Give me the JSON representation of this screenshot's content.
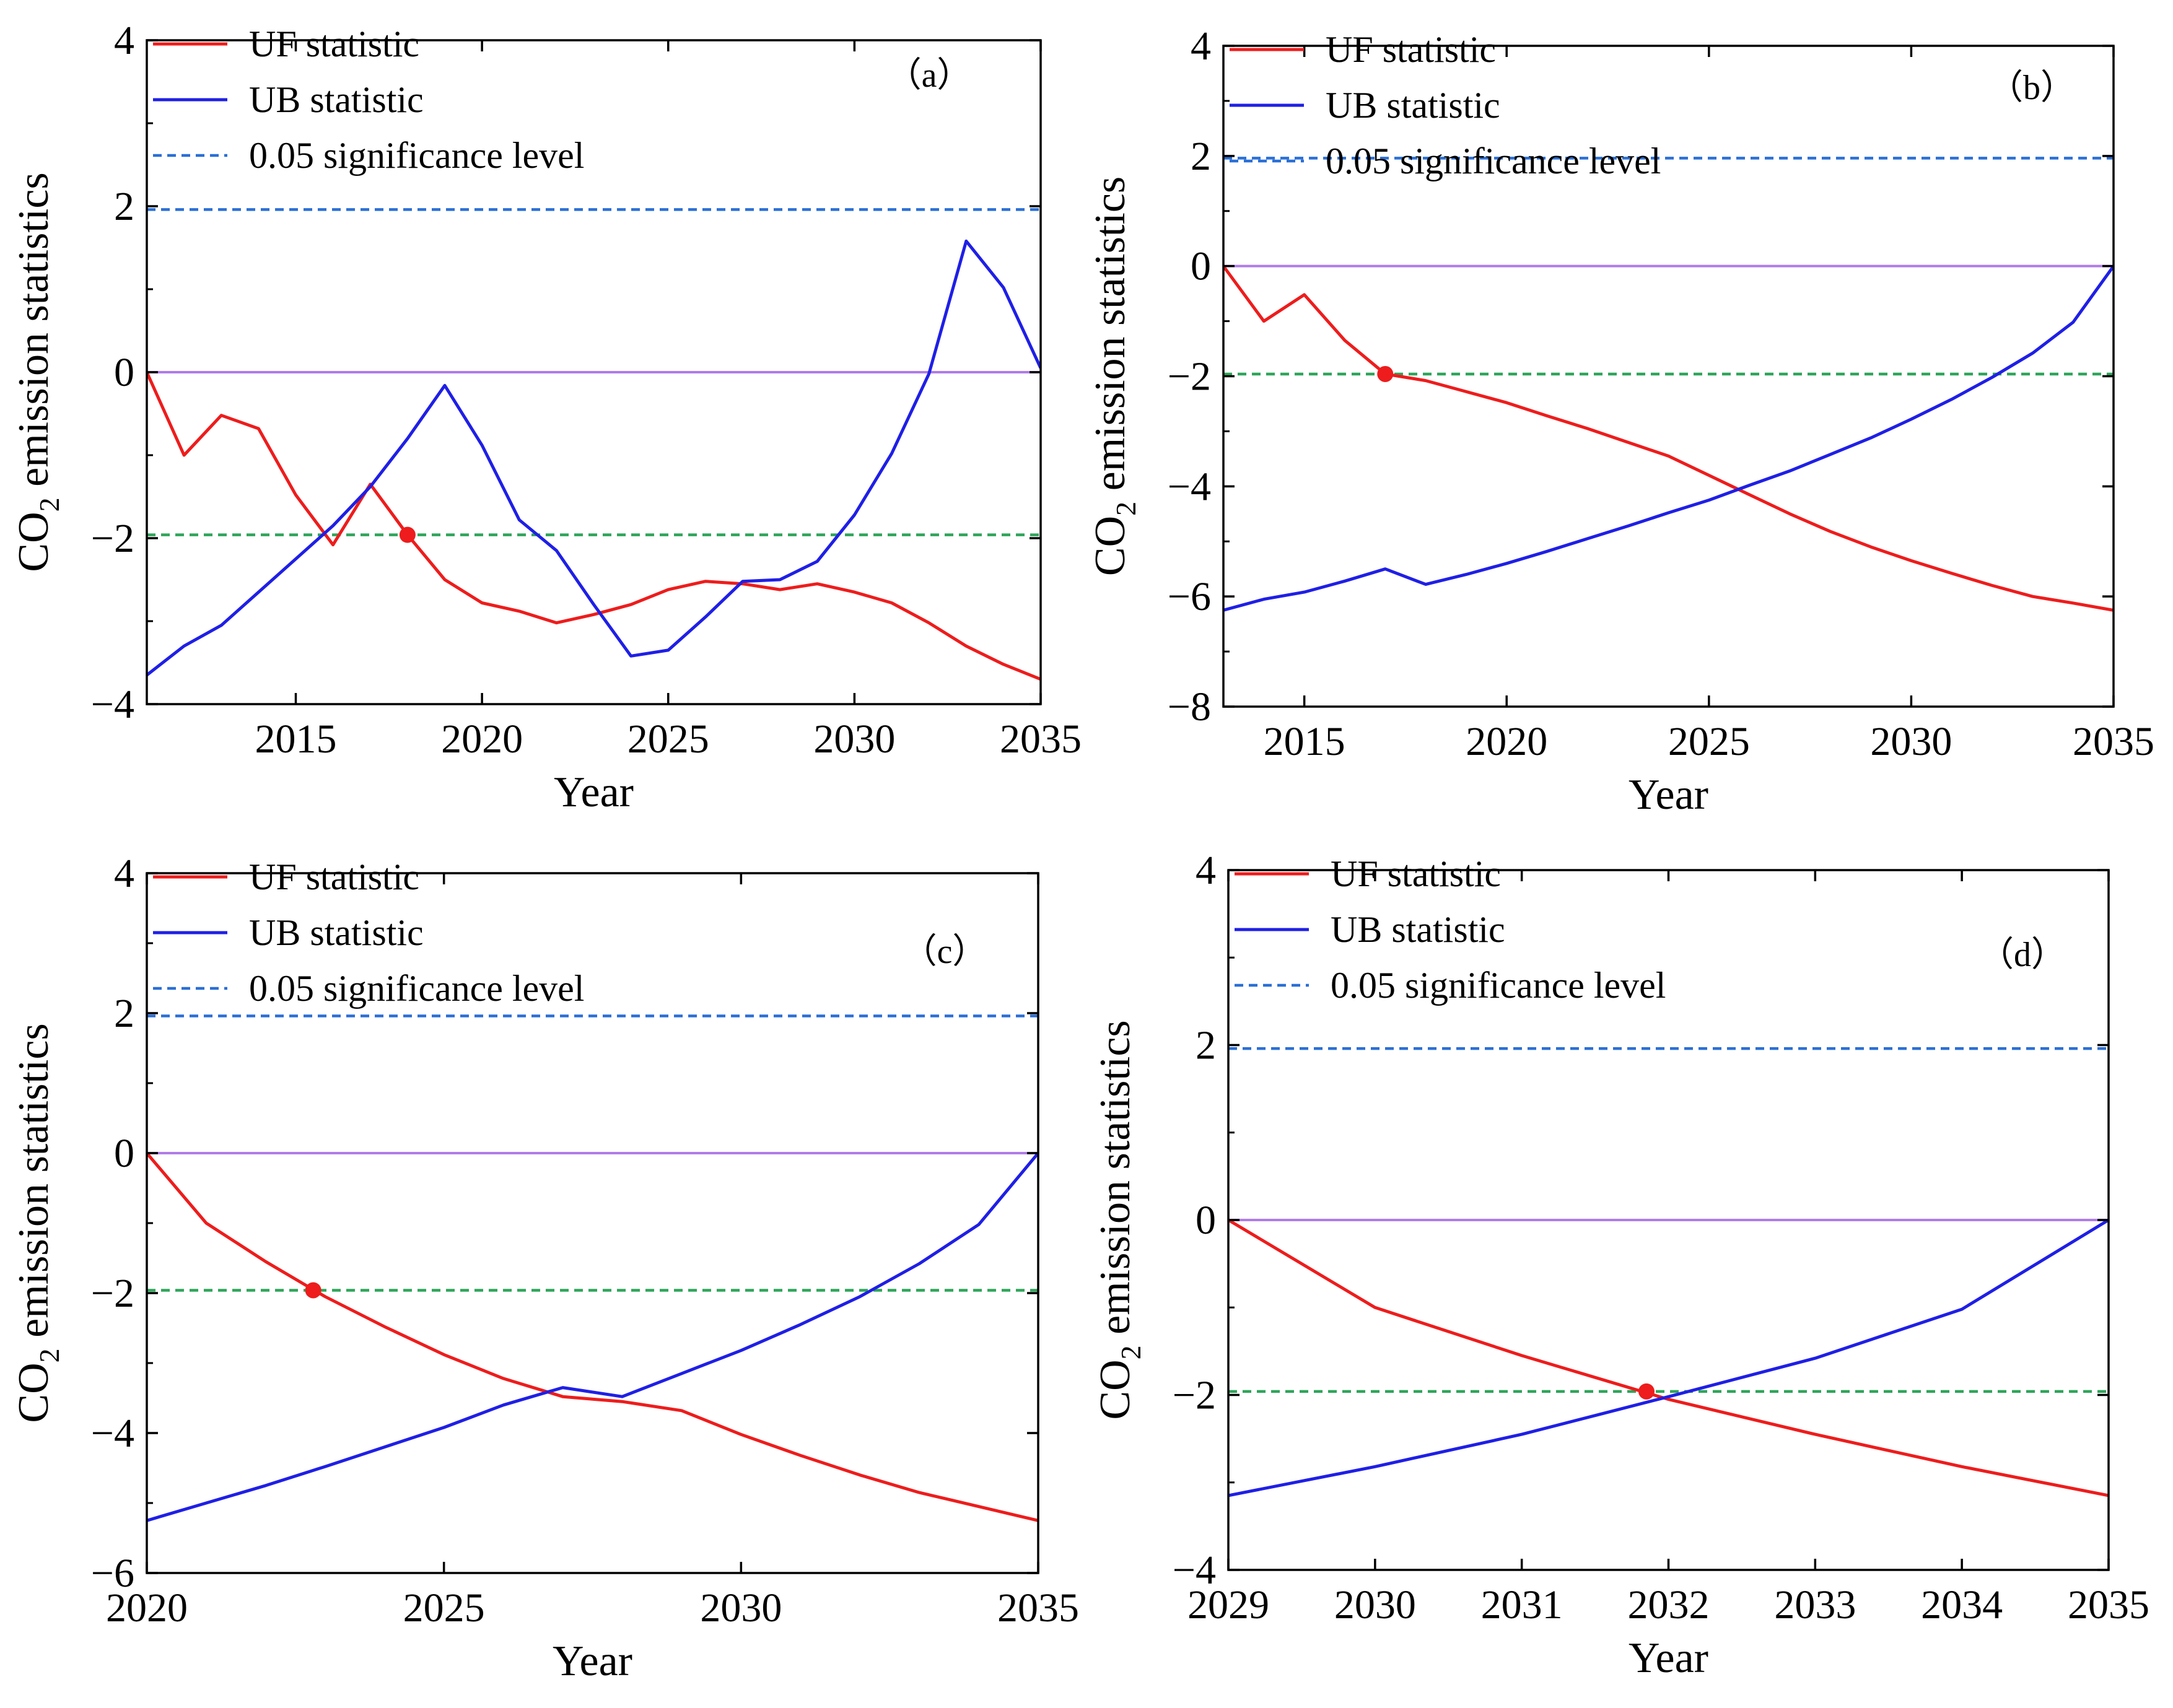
{
  "colors": {
    "uf": "#ee1c1c",
    "ub": "#1f1fe6",
    "sig_upper": "#2a6fd6",
    "sig_lower": "#2ea55a",
    "zero": "#b07ce8",
    "axis": "#000000"
  },
  "legend": {
    "uf": "UF statistic",
    "ub": "UB statistic",
    "sig": "0.05 significance level"
  },
  "chart_data": [
    {
      "id": "a",
      "type": "line",
      "label": "（a）",
      "xlabel": "Year",
      "ylabel_main": "CO",
      "ylabel_sub": "2",
      "ylabel_rest": " emission statistics",
      "xlim": [
        2011,
        2035
      ],
      "ylim": [
        -4,
        4
      ],
      "xticks": [
        2015,
        2020,
        2025,
        2030,
        2035
      ],
      "yticks": [
        4,
        2,
        0,
        -2,
        -4
      ],
      "significance": [
        1.96,
        -1.96
      ],
      "series": [
        {
          "name": "UF statistic",
          "x": [
            2011,
            2012,
            2013,
            2014,
            2015,
            2016,
            2017,
            2018,
            2019,
            2020,
            2021,
            2022,
            2023,
            2024,
            2025,
            2026,
            2027,
            2028,
            2029,
            2030,
            2031,
            2032,
            2033,
            2034,
            2035
          ],
          "values": [
            0,
            -1.0,
            -0.52,
            -0.68,
            -1.48,
            -2.08,
            -1.35,
            -1.96,
            -2.5,
            -2.78,
            -2.88,
            -3.02,
            -2.92,
            -2.8,
            -2.62,
            -2.52,
            -2.55,
            -2.62,
            -2.55,
            -2.65,
            -2.78,
            -3.02,
            -3.3,
            -3.52,
            -3.7
          ]
        },
        {
          "name": "UB statistic",
          "x": [
            2011,
            2012,
            2013,
            2014,
            2015,
            2016,
            2017,
            2018,
            2019,
            2020,
            2021,
            2022,
            2023,
            2024,
            2025,
            2026,
            2027,
            2028,
            2029,
            2030,
            2031,
            2032,
            2033,
            2034,
            2035
          ],
          "values": [
            -3.65,
            -3.3,
            -3.05,
            -2.65,
            -2.25,
            -1.85,
            -1.38,
            -0.8,
            -0.16,
            -0.88,
            -1.78,
            -2.15,
            -2.8,
            -3.42,
            -3.35,
            -2.95,
            -2.52,
            -2.5,
            -2.28,
            -1.72,
            -0.98,
            -0.02,
            1.58,
            1.02,
            0.05
          ]
        }
      ],
      "marker": {
        "x": 2018,
        "y": -1.96
      }
    },
    {
      "id": "b",
      "type": "line",
      "label": "（b）",
      "xlabel": "Year",
      "ylabel_main": "CO",
      "ylabel_sub": "2",
      "ylabel_rest": " emission statistics",
      "xlim": [
        2013,
        2035
      ],
      "ylim": [
        -8,
        4
      ],
      "xticks": [
        2015,
        2020,
        2025,
        2030,
        2035
      ],
      "yticks": [
        4,
        2,
        0,
        -2,
        -4,
        -6,
        -8
      ],
      "significance": [
        1.96,
        -1.96
      ],
      "series": [
        {
          "name": "UF statistic",
          "x": [
            2013,
            2014,
            2015,
            2016,
            2017,
            2018,
            2019,
            2020,
            2021,
            2022,
            2023,
            2024,
            2025,
            2026,
            2027,
            2028,
            2029,
            2030,
            2031,
            2032,
            2033,
            2034,
            2035
          ],
          "values": [
            0,
            -1.0,
            -0.52,
            -1.35,
            -1.96,
            -2.08,
            -2.28,
            -2.48,
            -2.72,
            -2.95,
            -3.2,
            -3.45,
            -3.8,
            -4.15,
            -4.5,
            -4.82,
            -5.1,
            -5.35,
            -5.58,
            -5.8,
            -6.0,
            -6.12,
            -6.25
          ]
        },
        {
          "name": "UB statistic",
          "x": [
            2013,
            2014,
            2015,
            2016,
            2017,
            2018,
            2019,
            2020,
            2021,
            2022,
            2023,
            2024,
            2025,
            2026,
            2027,
            2028,
            2029,
            2030,
            2031,
            2032,
            2033,
            2034,
            2035
          ],
          "values": [
            -6.25,
            -6.05,
            -5.92,
            -5.72,
            -5.5,
            -5.78,
            -5.6,
            -5.4,
            -5.18,
            -4.95,
            -4.72,
            -4.48,
            -4.25,
            -3.98,
            -3.72,
            -3.42,
            -3.12,
            -2.78,
            -2.42,
            -2.02,
            -1.58,
            -1.02,
            0
          ]
        }
      ],
      "marker": {
        "x": 2017,
        "y": -1.96
      }
    },
    {
      "id": "c",
      "type": "line",
      "label": "（c）",
      "xlabel": "Year",
      "ylabel_main": "CO",
      "ylabel_sub": "2",
      "ylabel_rest": " emission statistics",
      "xlim": [
        2020,
        2035
      ],
      "ylim": [
        -6,
        4
      ],
      "xticks": [
        2020,
        2025,
        2030,
        2035
      ],
      "yticks": [
        4,
        2,
        0,
        -2,
        -4,
        -6
      ],
      "significance": [
        1.96,
        -1.96
      ],
      "series": [
        {
          "name": "UF statistic",
          "x": [
            2020,
            2021,
            2022,
            2023,
            2024,
            2025,
            2026,
            2027,
            2028,
            2029,
            2030,
            2031,
            2032,
            2033,
            2034,
            2035
          ],
          "values": [
            0,
            -1.0,
            -1.55,
            -2.05,
            -2.48,
            -2.88,
            -3.22,
            -3.48,
            -3.55,
            -3.68,
            -4.02,
            -4.32,
            -4.6,
            -4.85,
            -5.05,
            -5.25
          ]
        },
        {
          "name": "UB statistic",
          "x": [
            2020,
            2021,
            2022,
            2023,
            2024,
            2025,
            2026,
            2027,
            2028,
            2029,
            2030,
            2031,
            2032,
            2033,
            2034,
            2035
          ],
          "values": [
            -5.25,
            -5.0,
            -4.75,
            -4.48,
            -4.2,
            -3.92,
            -3.6,
            -3.35,
            -3.48,
            -3.15,
            -2.82,
            -2.45,
            -2.05,
            -1.58,
            -1.02,
            0
          ]
        }
      ],
      "marker": {
        "x": 2022.8,
        "y": -1.96
      }
    },
    {
      "id": "d",
      "type": "line",
      "label": "（d）",
      "xlabel": "Year",
      "ylabel_main": "CO",
      "ylabel_sub": "2",
      "ylabel_rest": " emission statistics",
      "xlim": [
        2029,
        2035
      ],
      "ylim": [
        -4,
        4
      ],
      "xticks": [
        2029,
        2030,
        2031,
        2032,
        2033,
        2034,
        2035
      ],
      "yticks": [
        4,
        2,
        0,
        -2,
        -4
      ],
      "significance": [
        1.96,
        -1.96
      ],
      "series": [
        {
          "name": "UF statistic",
          "x": [
            2029,
            2030,
            2031,
            2032,
            2033,
            2034,
            2035
          ],
          "values": [
            0,
            -1.0,
            -1.55,
            -2.05,
            -2.45,
            -2.82,
            -3.15
          ]
        },
        {
          "name": "UB statistic",
          "x": [
            2029,
            2030,
            2031,
            2032,
            2033,
            2034,
            2035
          ],
          "values": [
            -3.15,
            -2.82,
            -2.45,
            -2.02,
            -1.58,
            -1.02,
            0
          ]
        }
      ],
      "marker": {
        "x": 2031.85,
        "y": -1.96
      }
    }
  ]
}
